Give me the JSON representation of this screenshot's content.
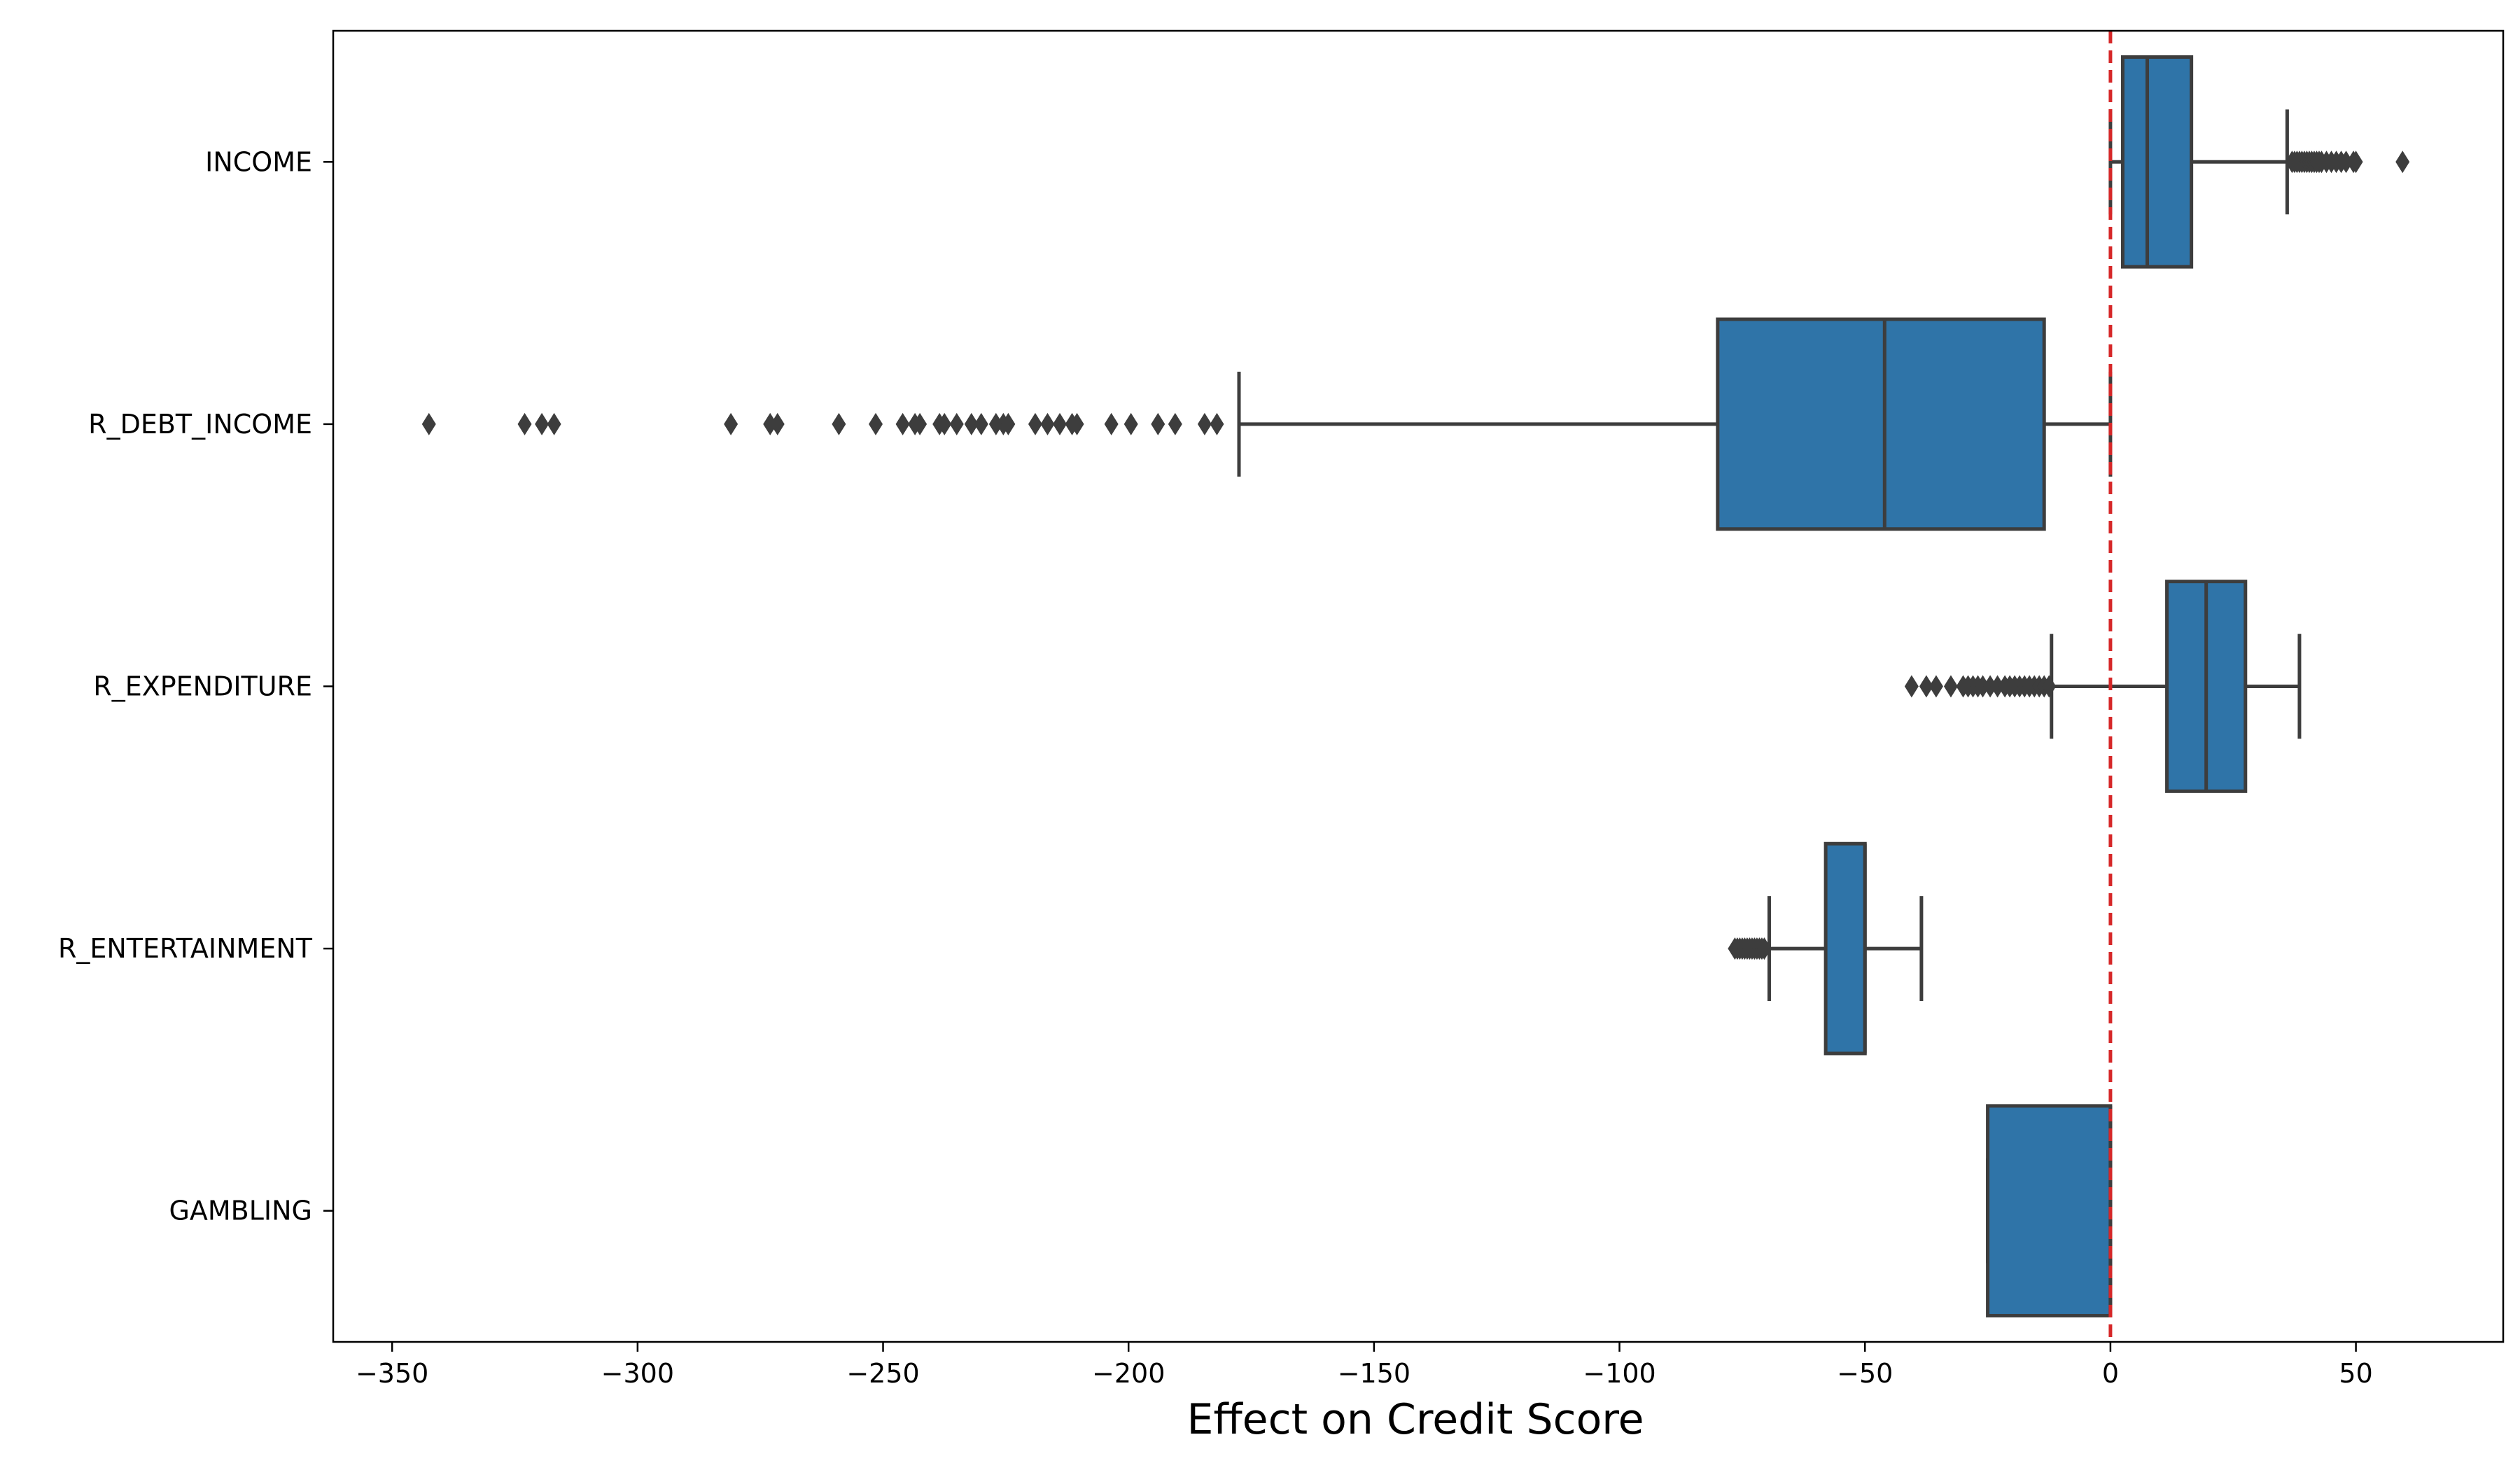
{
  "chart_data": {
    "type": "box",
    "orientation": "horizontal",
    "xlabel": "Effect on Credit Score",
    "ylabel": "",
    "xlim": [
      -362,
      80
    ],
    "x_ticks": [
      {
        "value": -350,
        "label": "−350"
      },
      {
        "value": -300,
        "label": "−300"
      },
      {
        "value": -250,
        "label": "−250"
      },
      {
        "value": -200,
        "label": "−200"
      },
      {
        "value": -150,
        "label": "−150"
      },
      {
        "value": -100,
        "label": "−100"
      },
      {
        "value": -50,
        "label": "−50"
      },
      {
        "value": 0,
        "label": "0"
      },
      {
        "value": 50,
        "label": "50"
      }
    ],
    "reference_line": {
      "x": 0,
      "style": "dashed",
      "color": "#d62728"
    },
    "box_color": "#2f74a8",
    "line_color": "#3d3d3d",
    "grid": false,
    "categories": [
      "INCOME",
      "R_DEBT_INCOME",
      "R_EXPENDITURE",
      "R_ENTERTAINMENT",
      "GAMBLING"
    ],
    "boxes": [
      {
        "category": "INCOME",
        "whisker_low": 0,
        "q1": 2.5,
        "median": 7.5,
        "q3": 16.5,
        "whisker_high": 36,
        "outliers": [
          37,
          37.5,
          38,
          38.5,
          39,
          39.5,
          40,
          40.5,
          41,
          41.5,
          42,
          42.5,
          43,
          44,
          45,
          46,
          47,
          48,
          49.5,
          50,
          59.5
        ]
      },
      {
        "category": "R_DEBT_INCOME",
        "whisker_low": -177.5,
        "q1": -80,
        "median": -46,
        "q3": -13.5,
        "whisker_high": 0,
        "outliers": [
          -342.5,
          -323,
          -319.5,
          -317,
          -281,
          -273,
          -271.5,
          -259,
          -251.5,
          -246,
          -243.5,
          -242.5,
          -238.5,
          -237.5,
          -235,
          -232,
          -230,
          -227,
          -225.5,
          -224.5,
          -219,
          -216.5,
          -214,
          -211.5,
          -210.5,
          -203.5,
          -199.5,
          -194,
          -190.5,
          -184.5,
          -182
        ]
      },
      {
        "category": "R_EXPENDITURE",
        "whisker_low": -12,
        "q1": 11.5,
        "median": 19.5,
        "q3": 27.5,
        "whisker_high": 38.5,
        "outliers": [
          -40.5,
          -37.5,
          -35.5,
          -32.5,
          -30,
          -29,
          -28,
          -27,
          -26,
          -24.5,
          -23,
          -21.5,
          -20.5,
          -19.5,
          -18.5,
          -17.5,
          -16.5,
          -15.5,
          -14.5,
          -13.5,
          -12.5
        ]
      },
      {
        "category": "R_ENTERTAINMENT",
        "whisker_low": -69.5,
        "q1": -58,
        "median": -50,
        "q3": -50,
        "whisker_high": -38.5,
        "outliers": [
          -76.5,
          -76,
          -75.5,
          -75,
          -74.5,
          -74,
          -73.5,
          -73,
          -72.5,
          -72,
          -71.5,
          -71,
          -70.5
        ]
      },
      {
        "category": "GAMBLING",
        "whisker_low": -25,
        "q1": -25,
        "median": 0,
        "q3": 0,
        "whisker_high": 0,
        "outliers": []
      }
    ]
  }
}
